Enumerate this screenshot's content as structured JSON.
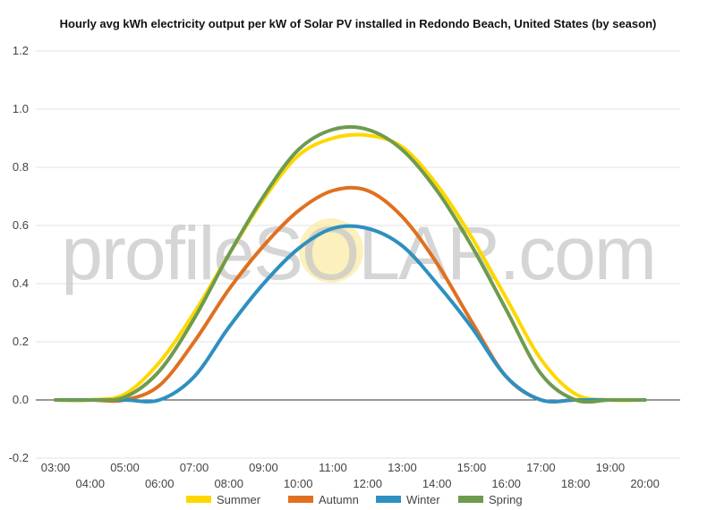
{
  "chart_data": {
    "type": "line",
    "title": "Hourly avg kWh electricity output per kW of Solar PV installed in Redondo Beach, United States (by season)",
    "xlabel": "",
    "ylabel": "",
    "x_ticks_upper": [
      "03:00",
      "05:00",
      "07:00",
      "09:00",
      "11:00",
      "13:00",
      "15:00",
      "17:00",
      "19:00"
    ],
    "x_ticks_lower": [
      "04:00",
      "06:00",
      "08:00",
      "10:00",
      "12:00",
      "14:00",
      "16:00",
      "18:00",
      "20:00"
    ],
    "xlim": [
      3,
      20.5
    ],
    "ylim": [
      -0.2,
      1.2
    ],
    "y_ticks": [
      "-0.2",
      "0.0",
      "0.2",
      "0.4",
      "0.6",
      "0.8",
      "1.0",
      "1.2"
    ],
    "grid": true,
    "legend_position": "bottom",
    "watermark": "profileSOLAR.com",
    "x": [
      3,
      4,
      5,
      6,
      7,
      8,
      9,
      10,
      11,
      12,
      13,
      14,
      15,
      16,
      17,
      18,
      19,
      20
    ],
    "series": [
      {
        "name": "Summer",
        "color": "#FFD700",
        "values": [
          0.0,
          0.0,
          0.02,
          0.13,
          0.3,
          0.5,
          0.69,
          0.84,
          0.9,
          0.91,
          0.87,
          0.74,
          0.56,
          0.35,
          0.14,
          0.02,
          0.0,
          0.0
        ]
      },
      {
        "name": "Autumn",
        "color": "#E07020",
        "values": [
          0.0,
          0.0,
          0.0,
          0.05,
          0.2,
          0.38,
          0.53,
          0.65,
          0.72,
          0.72,
          0.63,
          0.47,
          0.27,
          0.08,
          0.0,
          0.0,
          0.0,
          0.0
        ]
      },
      {
        "name": "Winter",
        "color": "#2E90C0",
        "values": [
          0.0,
          0.0,
          0.0,
          0.0,
          0.08,
          0.25,
          0.4,
          0.52,
          0.59,
          0.59,
          0.53,
          0.4,
          0.25,
          0.08,
          0.0,
          0.0,
          0.0,
          0.0
        ]
      },
      {
        "name": "Spring",
        "color": "#6E9B4E",
        "values": [
          0.0,
          0.0,
          0.01,
          0.1,
          0.28,
          0.5,
          0.7,
          0.86,
          0.93,
          0.93,
          0.86,
          0.72,
          0.53,
          0.31,
          0.09,
          0.0,
          0.0,
          0.0
        ]
      }
    ]
  }
}
